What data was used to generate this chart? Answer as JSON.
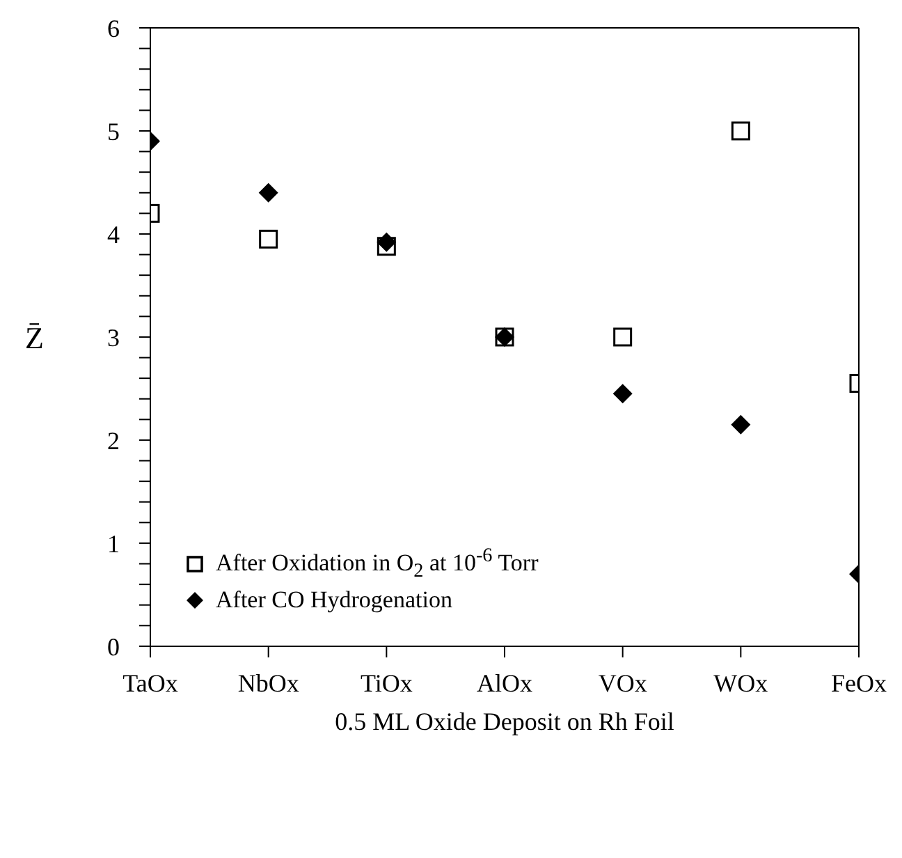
{
  "chart_data": {
    "type": "scatter",
    "xlabel": "0.5 ML Oxide Deposit on Rh Foil",
    "ylabel": "Z̄",
    "categories": [
      "TaOx",
      "NbOx",
      "TiOx",
      "AlOx",
      "VOx",
      "WOx",
      "FeOx"
    ],
    "series": [
      {
        "name": "After Oxidation in O$_{2}$ at 10$^{-6}$ Torr",
        "color": "#000000",
        "marker": "square",
        "values": [
          4.2,
          3.95,
          3.88,
          3.0,
          3.0,
          5.0,
          2.55
        ]
      },
      {
        "name": "After CO Hydrogenation",
        "color": "#000000",
        "marker": "diamond",
        "values": [
          4.9,
          4.4,
          3.92,
          3.0,
          2.45,
          2.15,
          0.7
        ]
      }
    ],
    "ylim": [
      0,
      6
    ],
    "yticks": [
      0,
      {
        "value": 0.2,
        "label": null
      },
      {
        "value": 0.4,
        "label": null
      },
      {
        "value": 0.6,
        "label": null
      },
      {
        "value": 0.8,
        "label": null
      },
      1,
      {
        "value": 1.2,
        "label": null
      },
      {
        "value": 1.4,
        "label": null
      },
      {
        "value": 1.6,
        "label": null
      },
      {
        "value": 1.8,
        "label": null
      },
      2,
      {
        "value": 2.2,
        "label": null
      },
      {
        "value": 2.4,
        "label": null
      },
      {
        "value": 2.6,
        "label": null
      },
      {
        "value": 2.8,
        "label": null
      },
      3,
      {
        "value": 3.2,
        "label": null
      },
      {
        "value": 3.4,
        "label": null
      },
      {
        "value": 3.6,
        "label": null
      },
      {
        "value": 3.8,
        "label": null
      },
      4,
      {
        "value": 4.2,
        "label": null
      },
      {
        "value": 4.4,
        "label": null
      },
      {
        "value": 4.6,
        "label": null
      },
      {
        "value": 4.8,
        "label": null
      },
      5,
      {
        "value": 5.2,
        "label": null
      },
      {
        "value": 5.4,
        "label": null
      },
      {
        "value": 5.6,
        "label": null
      },
      {
        "value": 5.8,
        "label": null
      },
      6
    ],
    "legend": "bottom left"
  }
}
